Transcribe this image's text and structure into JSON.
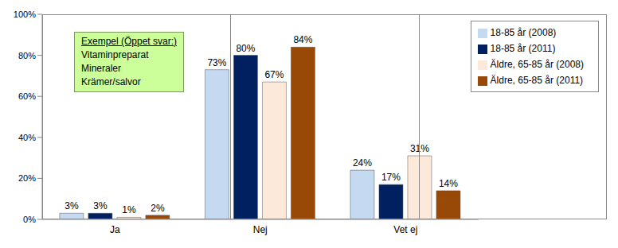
{
  "chart_data": {
    "type": "bar",
    "categories": [
      "Ja",
      "Nej",
      "Vet ej"
    ],
    "series": [
      {
        "name": "18-85 år (2008)",
        "color": "#c5d9f1",
        "values": [
          3,
          73,
          24
        ],
        "value_labels": [
          "3%",
          "73%",
          "24%"
        ]
      },
      {
        "name": "18-85 år (2011)",
        "color": "#002060",
        "values": [
          3,
          80,
          17
        ],
        "value_labels": [
          "3%",
          "80%",
          "17%"
        ]
      },
      {
        "name": "Äldre, 65-85 år (2008)",
        "color": "#fde9d9",
        "values": [
          1,
          67,
          31
        ],
        "value_labels": [
          "1%",
          "67%",
          "31%"
        ]
      },
      {
        "name": "Äldre, 65-85 år (2011)",
        "color": "#984807",
        "values": [
          2,
          84,
          14
        ],
        "value_labels": [
          "2%",
          "84%",
          "14%"
        ]
      }
    ],
    "ylim": [
      0,
      100
    ],
    "yticks": [
      {
        "value": 0,
        "label": "0%"
      },
      {
        "value": 20,
        "label": "20%"
      },
      {
        "value": 40,
        "label": "40%"
      },
      {
        "value": 60,
        "label": "60%"
      },
      {
        "value": 80,
        "label": "80%"
      },
      {
        "value": 100,
        "label": "100%"
      }
    ],
    "grid": false,
    "legend": "upper right",
    "data_labels": true,
    "annotations": [
      "Exempel (Öppet svar:)",
      "Vitaminpreparat",
      "Mineraler",
      "Krämer/salvor"
    ]
  }
}
